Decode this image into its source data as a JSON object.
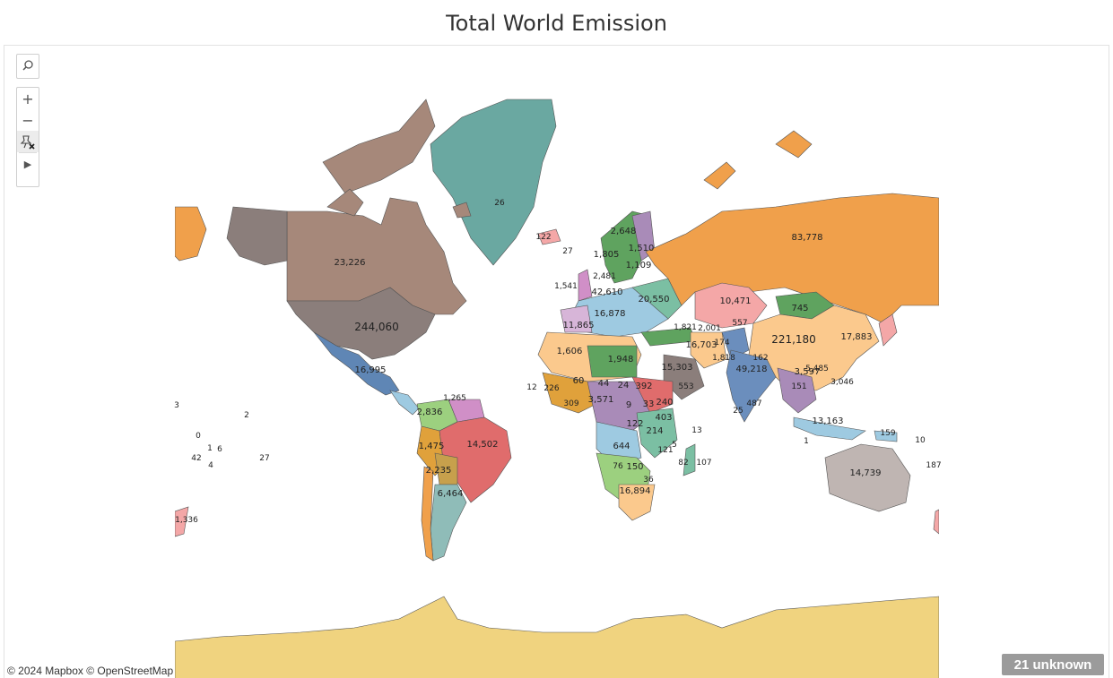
{
  "title": "Total World Emission",
  "attribution": "© 2024 Mapbox © OpenStreetMap",
  "unknown_badge": "21 unknown",
  "controls": {
    "search_icon": "search-icon",
    "zoom_in_icon": "plus-icon",
    "zoom_out_icon": "minus-icon",
    "pin_icon": "pin-reset-icon",
    "expand_icon": "play-triangle-icon"
  },
  "labels": [
    {
      "text": "83,778"
    },
    {
      "text": "244,060"
    },
    {
      "text": "23,226"
    },
    {
      "text": "221,180"
    },
    {
      "text": "14,502"
    },
    {
      "text": "49,218"
    },
    {
      "text": "14,739"
    },
    {
      "text": "26"
    },
    {
      "text": "10,471"
    },
    {
      "text": "16,995"
    },
    {
      "text": "6,464"
    },
    {
      "text": "745"
    },
    {
      "text": "16,703"
    },
    {
      "text": "15,303"
    },
    {
      "text": "17,883"
    },
    {
      "text": "13,163"
    },
    {
      "text": "16,894"
    },
    {
      "text": "2,836"
    },
    {
      "text": "1,475"
    },
    {
      "text": "2,235"
    },
    {
      "text": "2,648"
    },
    {
      "text": "1,510"
    },
    {
      "text": "1,805"
    },
    {
      "text": "1,109"
    },
    {
      "text": "122"
    },
    {
      "text": "27"
    },
    {
      "text": "1,541"
    },
    {
      "text": "2,481"
    },
    {
      "text": "42,610"
    },
    {
      "text": "20,550"
    },
    {
      "text": "16,878"
    },
    {
      "text": "11,865"
    },
    {
      "text": "1,606"
    },
    {
      "text": "1,948"
    },
    {
      "text": "392"
    },
    {
      "text": "240"
    },
    {
      "text": "214"
    },
    {
      "text": "403"
    },
    {
      "text": "644"
    },
    {
      "text": "150"
    },
    {
      "text": "76"
    },
    {
      "text": "36"
    },
    {
      "text": "1,821"
    },
    {
      "text": "2,001"
    },
    {
      "text": "557"
    },
    {
      "text": "174"
    },
    {
      "text": "1,818"
    },
    {
      "text": "162"
    },
    {
      "text": "3,597"
    },
    {
      "text": "151"
    },
    {
      "text": "3,046"
    },
    {
      "text": "5,485"
    },
    {
      "text": "44"
    },
    {
      "text": "60"
    },
    {
      "text": "24"
    },
    {
      "text": "33"
    },
    {
      "text": "9"
    },
    {
      "text": "122"
    },
    {
      "text": "1,265"
    },
    {
      "text": "159"
    },
    {
      "text": "1,336"
    },
    {
      "text": "107"
    },
    {
      "text": "25"
    },
    {
      "text": "487"
    },
    {
      "text": "13"
    },
    {
      "text": "553"
    },
    {
      "text": "3,571"
    },
    {
      "text": "309"
    },
    {
      "text": "226"
    },
    {
      "text": "12"
    },
    {
      "text": "3"
    },
    {
      "text": "2"
    },
    {
      "text": "0"
    },
    {
      "text": "1"
    },
    {
      "text": "6"
    },
    {
      "text": "42"
    },
    {
      "text": "4"
    },
    {
      "text": "27"
    },
    {
      "text": "10"
    },
    {
      "text": "187"
    },
    {
      "text": "82"
    },
    {
      "text": "5"
    },
    {
      "text": "1"
    },
    {
      "text": "121"
    }
  ],
  "colors": {
    "russia": "#f0a04b",
    "usa": "#8b7e7b",
    "canada": "#a6887a",
    "china": "#fbc98d",
    "brazil": "#e06c6c",
    "india": "#6b8ebd",
    "australia": "#bfb5b2",
    "greenland": "#6aa8a1",
    "antarctica": "#f0d37f",
    "kazakhstan": "#f4a7a7",
    "mongolia": "#5fa35f"
  }
}
